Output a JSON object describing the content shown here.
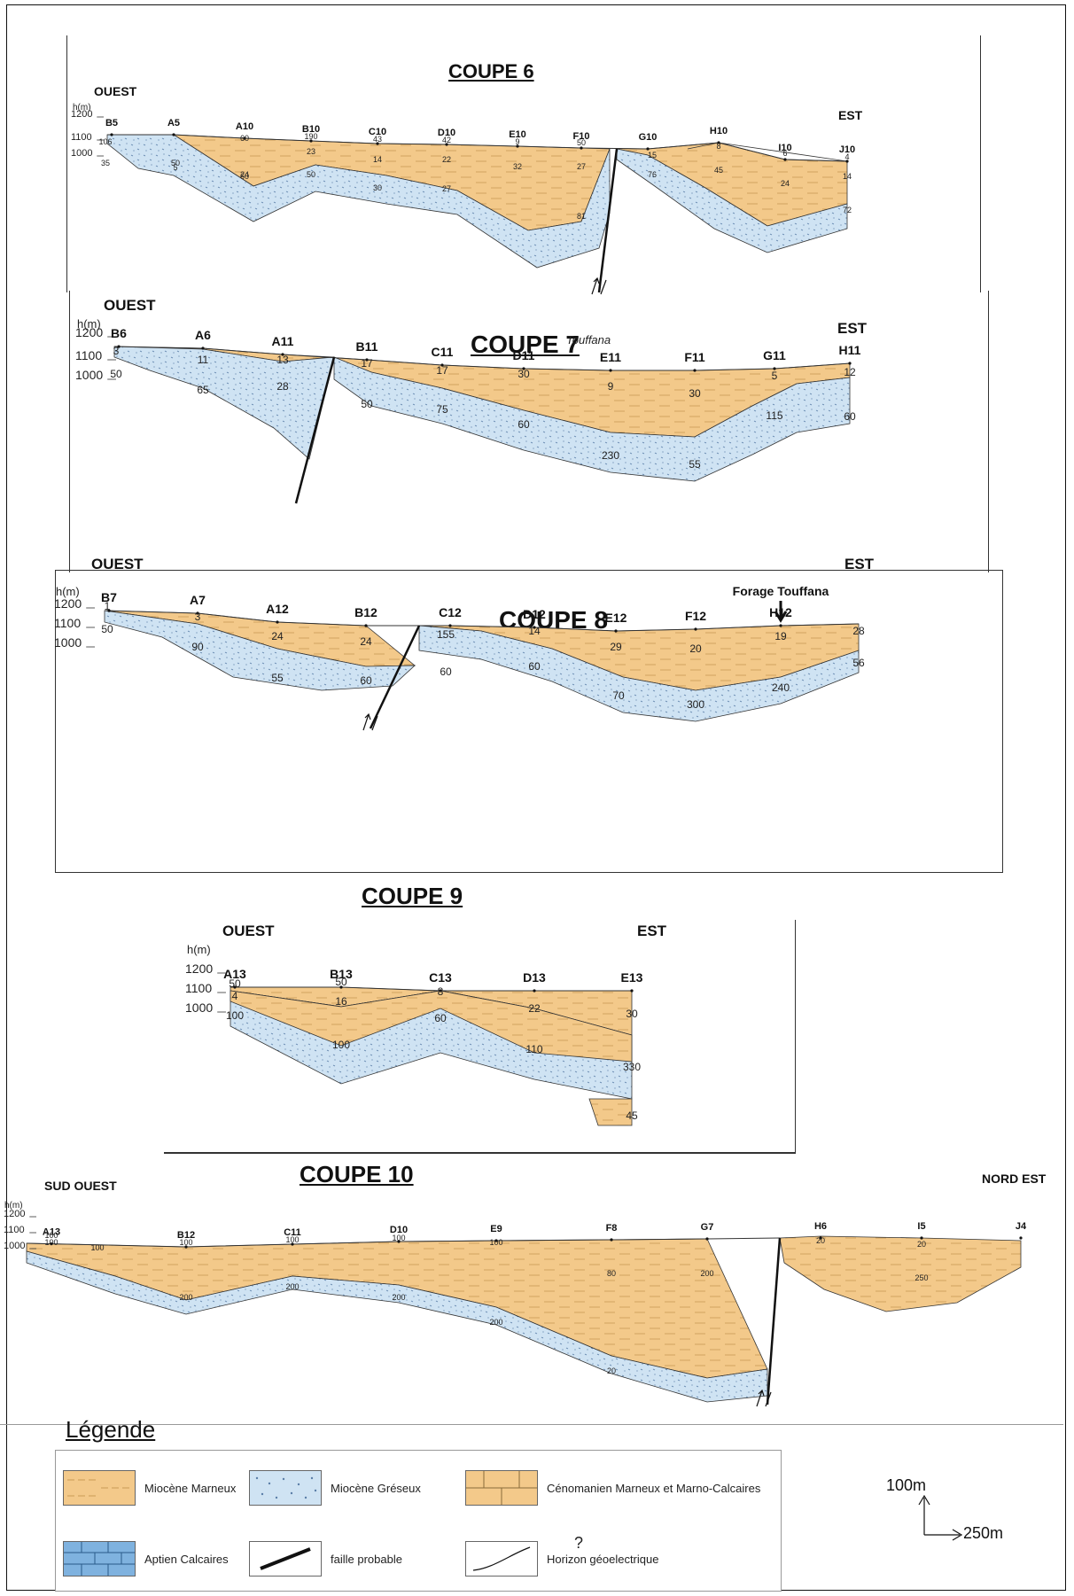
{
  "sections": [
    {
      "id": "coupe6",
      "title": "COUPE 6",
      "left_label": "OUEST",
      "right_label": "EST",
      "axis_unit": "h(m)",
      "axis_ticks": [
        "1200",
        "1100",
        "1000"
      ],
      "stations": [
        "B5",
        "A5",
        "A10",
        "B10",
        "C10",
        "D10",
        "E10",
        "F10",
        "G10",
        "H10",
        "I10",
        "J10"
      ],
      "values": [
        "106",
        "35",
        "5",
        "50",
        "60",
        "24",
        "60",
        "190",
        "23",
        "50",
        "43",
        "14",
        "30",
        "42",
        "22",
        "27",
        "9",
        "32",
        "50",
        "27",
        "81",
        "15",
        "76",
        "8",
        "45",
        "6",
        "24",
        "4",
        "14",
        "72"
      ]
    },
    {
      "id": "coupe7",
      "title": "COUPE 7",
      "left_label": "OUEST",
      "right_label": "EST",
      "axis_unit": "h(m)",
      "axis_ticks": [
        "1200",
        "1100",
        "1000"
      ],
      "stations": [
        "B6",
        "A6",
        "A11",
        "B11",
        "C11",
        "D11",
        "E11",
        "F11",
        "G11",
        "H11"
      ],
      "place": "Touffana",
      "values": [
        "3",
        "50",
        "11",
        "65",
        "13",
        "28",
        "17",
        "50",
        "17",
        "75",
        "30",
        "60",
        "9",
        "230",
        "30",
        "55",
        "5",
        "115",
        "12",
        "60"
      ]
    },
    {
      "id": "coupe8",
      "title": "COUPE 8",
      "left_label": "OUEST",
      "right_label": "EST",
      "axis_unit": "h(m)",
      "axis_ticks": [
        "1200",
        "1100",
        "1000"
      ],
      "stations": [
        "B7",
        "A7",
        "A12",
        "B12",
        "C12",
        "D12",
        "E12",
        "F12",
        "H12"
      ],
      "forage": "Forage Touffana",
      "values": [
        "1",
        "50",
        "3",
        "90",
        "24",
        "55",
        "24",
        "60",
        "155",
        "60",
        "14",
        "60",
        "70",
        "29",
        "20",
        "300",
        "19",
        "240",
        "28",
        "56"
      ]
    },
    {
      "id": "coupe9",
      "title": "COUPE 9",
      "left_label": "OUEST",
      "right_label": "EST",
      "axis_unit": "h(m)",
      "axis_ticks": [
        "1200",
        "1100",
        "1000"
      ],
      "stations": [
        "A13",
        "B13",
        "C13",
        "D13",
        "E13"
      ],
      "values": [
        "50",
        "4",
        "100",
        "50",
        "16",
        "100",
        "8",
        "60",
        "22",
        "110",
        "30",
        "330",
        "45"
      ]
    },
    {
      "id": "coupe10",
      "title": "COUPE 10",
      "left_label": "SUD OUEST",
      "right_label": "NORD EST",
      "axis_unit": "h(m)",
      "axis_ticks": [
        "1200",
        "1100",
        "1000"
      ],
      "stations": [
        "A13",
        "B12",
        "C11",
        "D10",
        "E9",
        "F8",
        "G7",
        "H6",
        "I5",
        "J4"
      ],
      "values": [
        "100",
        "100",
        "100",
        "100",
        "100",
        "100",
        "100",
        "80",
        "200",
        "200",
        "200",
        "200",
        "200",
        "20",
        "20",
        "20",
        "250"
      ]
    }
  ],
  "legend": {
    "title": "Légende",
    "items": [
      {
        "label": "Miocène Marneux",
        "pattern": "marneux"
      },
      {
        "label": "Miocène Gréseux",
        "pattern": "greseux"
      },
      {
        "label": "Cénomanien Marneux et Marno-Calcaires",
        "pattern": "cenomanien"
      },
      {
        "label": "Aptien Calcaires",
        "pattern": "aptien"
      },
      {
        "label": "faille probable",
        "pattern": "faille"
      },
      {
        "label": "Horizon géoelectrique",
        "pattern": "horizon"
      }
    ],
    "mark": "?"
  },
  "scale": {
    "vertical": "100m",
    "horizontal": "250m"
  },
  "colors": {
    "marneux": "#f3c98a",
    "marneux_line": "#c89a55",
    "greseux": "#cfe3f3",
    "greseux_dot": "#5b7fa8",
    "fault": "#111111",
    "aptien": "#7fb2df"
  }
}
